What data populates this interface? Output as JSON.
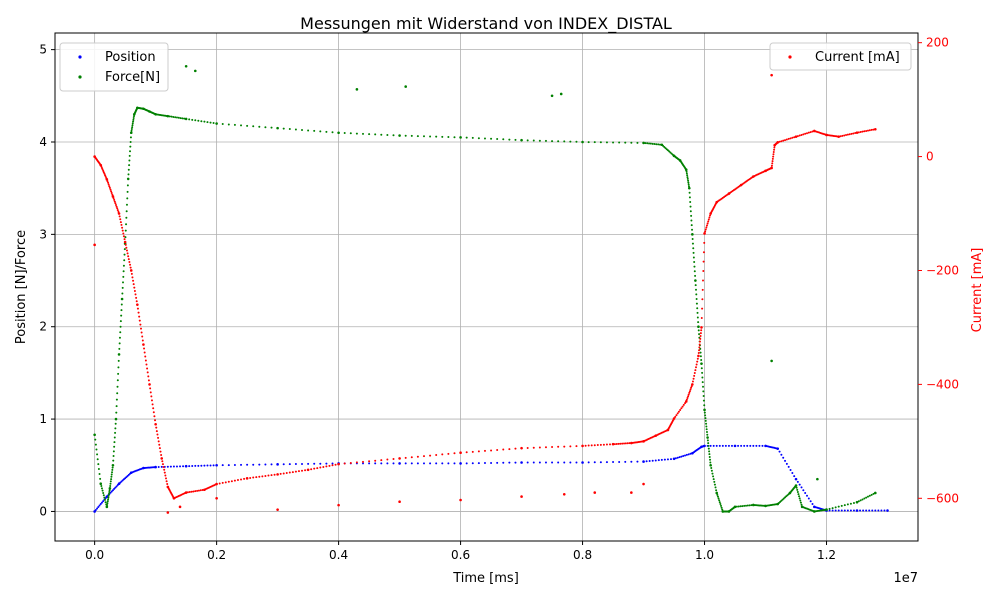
{
  "chart_data": {
    "type": "scatter",
    "title": "Messungen mit Widerstand von INDEX_DISTAL",
    "xlabel": "Time [ms]",
    "ylabel_left": "Position [N]/Force",
    "ylabel_right": "Current [mA]",
    "x_offset_label": "1e7",
    "xlim": [
      -0.065,
      1.35
    ],
    "ylim_left": [
      -0.32,
      5.18
    ],
    "ylim_right": [
      -675,
      217
    ],
    "x_ticks": [
      0.0,
      0.2,
      0.4,
      0.6,
      0.8,
      1.0,
      1.2
    ],
    "x_tick_labels": [
      "0.0",
      "0.2",
      "0.4",
      "0.6",
      "0.8",
      "1.0",
      "1.2"
    ],
    "y_left_ticks": [
      0,
      1,
      2,
      3,
      4,
      5
    ],
    "y_left_tick_labels": [
      "0",
      "1",
      "2",
      "3",
      "4",
      "5"
    ],
    "y_right_ticks": [
      -600,
      -400,
      -200,
      0,
      200
    ],
    "y_right_tick_labels": [
      "−600",
      "−400",
      "−200",
      "0",
      "200"
    ],
    "grid": true,
    "legend_left_placement": "top-left",
    "legend_right_placement": "top-right",
    "colors": {
      "position": "#0000ff",
      "force": "#008000",
      "current": "#ff0000",
      "right_axis": "#ff0000"
    },
    "series": [
      {
        "name": "Position",
        "axis": "left",
        "color": "#0000ff",
        "x": [
          0.0,
          0.02,
          0.04,
          0.06,
          0.08,
          0.1,
          0.15,
          0.2,
          0.3,
          0.4,
          0.5,
          0.6,
          0.7,
          0.8,
          0.9,
          0.95,
          0.98,
          0.995,
          1.0,
          1.05,
          1.1,
          1.12,
          1.15,
          1.18,
          1.2,
          1.25,
          1.3
        ],
        "values": [
          0.0,
          0.16,
          0.3,
          0.42,
          0.47,
          0.48,
          0.49,
          0.5,
          0.51,
          0.52,
          0.52,
          0.52,
          0.53,
          0.53,
          0.54,
          0.57,
          0.63,
          0.7,
          0.71,
          0.71,
          0.71,
          0.68,
          0.35,
          0.05,
          0.01,
          0.01,
          0.01
        ]
      },
      {
        "name": "Force[N]",
        "axis": "left",
        "color": "#008000",
        "x": [
          0.0,
          0.01,
          0.02,
          0.025,
          0.03,
          0.035,
          0.04,
          0.045,
          0.05,
          0.055,
          0.06,
          0.065,
          0.07,
          0.08,
          0.09,
          0.1,
          0.12,
          0.15,
          0.2,
          0.3,
          0.4,
          0.5,
          0.6,
          0.7,
          0.8,
          0.9,
          0.93,
          0.95,
          0.96,
          0.97,
          0.975,
          0.98,
          0.985,
          0.99,
          0.995,
          1.0,
          1.005,
          1.01,
          1.02,
          1.03,
          1.04,
          1.05,
          1.08,
          1.1,
          1.12,
          1.14,
          1.15,
          1.16,
          1.18,
          1.2,
          1.25,
          1.28
        ],
        "values": [
          0.83,
          0.3,
          0.05,
          0.25,
          0.5,
          1.0,
          1.7,
          2.3,
          2.9,
          3.6,
          4.1,
          4.3,
          4.37,
          4.36,
          4.33,
          4.3,
          4.28,
          4.25,
          4.2,
          4.15,
          4.1,
          4.07,
          4.05,
          4.02,
          4.0,
          3.99,
          3.97,
          3.85,
          3.8,
          3.7,
          3.5,
          3.0,
          2.5,
          2.0,
          1.6,
          1.1,
          0.8,
          0.5,
          0.2,
          0.0,
          0.0,
          0.05,
          0.07,
          0.06,
          0.08,
          0.2,
          0.28,
          0.05,
          0.0,
          0.02,
          0.1,
          0.2
        ],
        "outliers_x": [
          0.15,
          0.165,
          0.43,
          0.51,
          0.75,
          0.765,
          1.11,
          1.185
        ],
        "outliers_y": [
          4.82,
          4.77,
          4.57,
          4.6,
          4.5,
          4.52,
          1.63,
          0.35
        ]
      },
      {
        "name": "Current [mA]",
        "axis": "right",
        "color": "#ff0000",
        "x": [
          0.0,
          0.01,
          0.02,
          0.03,
          0.04,
          0.05,
          0.06,
          0.07,
          0.08,
          0.09,
          0.1,
          0.11,
          0.12,
          0.13,
          0.15,
          0.18,
          0.2,
          0.25,
          0.3,
          0.35,
          0.4,
          0.5,
          0.6,
          0.7,
          0.8,
          0.85,
          0.88,
          0.9,
          0.92,
          0.94,
          0.95,
          0.97,
          0.98,
          0.99,
          0.995,
          1.0,
          1.01,
          1.02,
          1.04,
          1.06,
          1.08,
          1.1,
          1.11,
          1.115,
          1.12,
          1.15,
          1.18,
          1.2,
          1.22,
          1.25,
          1.28
        ],
        "values": [
          0,
          -15,
          -40,
          -70,
          -100,
          -150,
          -200,
          -260,
          -330,
          -400,
          -470,
          -530,
          -580,
          -600,
          -590,
          -585,
          -575,
          -565,
          -558,
          -550,
          -540,
          -530,
          -520,
          -512,
          -508,
          -505,
          -503,
          -500,
          -490,
          -480,
          -460,
          -430,
          -400,
          -350,
          -300,
          -135,
          -100,
          -80,
          -65,
          -50,
          -35,
          -25,
          -20,
          20,
          25,
          35,
          45,
          38,
          35,
          42,
          48
        ],
        "outliers_x": [
          0.0,
          0.12,
          0.14,
          0.2,
          0.3,
          0.4,
          0.5,
          0.6,
          0.7,
          0.77,
          0.82,
          0.88,
          0.9,
          1.11
        ],
        "outliers_y": [
          -155,
          -625,
          -615,
          -600,
          -620,
          -612,
          -606,
          -603,
          -597,
          -593,
          -590,
          -590,
          -575,
          143
        ]
      }
    ]
  }
}
